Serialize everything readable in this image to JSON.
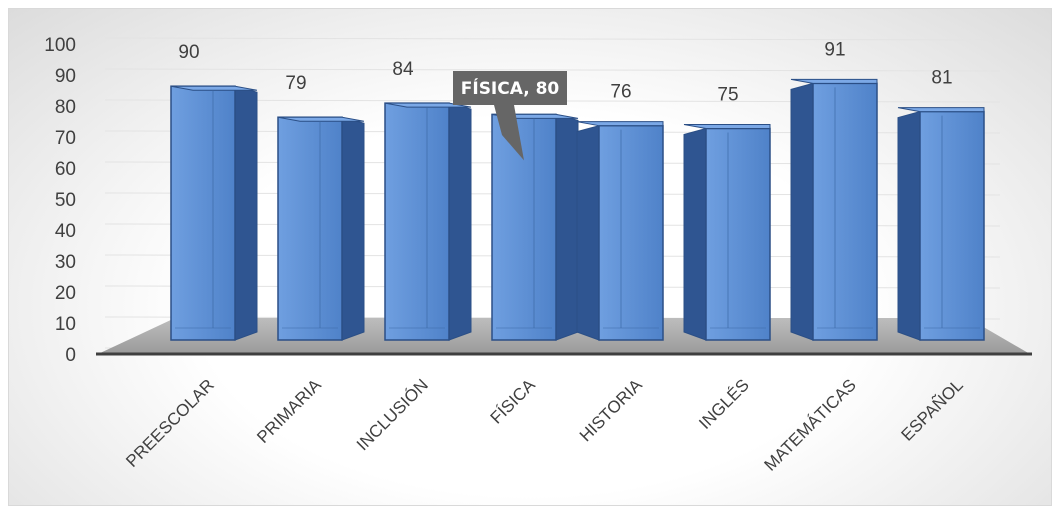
{
  "chart_data": {
    "type": "bar",
    "style": "3d-column",
    "categories": [
      "PREESCOLAR",
      "PRIMARIA",
      "INCLUSIÓN",
      "FÍSICA",
      "HISTORIA",
      "INGLÉS",
      "MATEMÁTICAS",
      "ESPAÑOL"
    ],
    "values": [
      90,
      79,
      84,
      80,
      76,
      75,
      91,
      81
    ],
    "data_labels": [
      "90",
      "79",
      "84",
      "",
      "76",
      "75",
      "91",
      "81"
    ],
    "callout": {
      "category": "FÍSICA",
      "text": "FÍSICA, 80"
    },
    "title": "",
    "xlabel": "",
    "ylabel": "",
    "ylim": [
      0,
      100
    ],
    "yticks": [
      "0",
      "10",
      "20",
      "30",
      "40",
      "50",
      "60",
      "70",
      "80",
      "90",
      "100"
    ],
    "grid": true,
    "legend": "none",
    "colors": {
      "bar_front": "#5b8fd6",
      "bar_side": "#2f5591",
      "bar_edge": "#2b4f86",
      "floor": "#a6a6a6",
      "callout_bg": "#666666"
    }
  }
}
